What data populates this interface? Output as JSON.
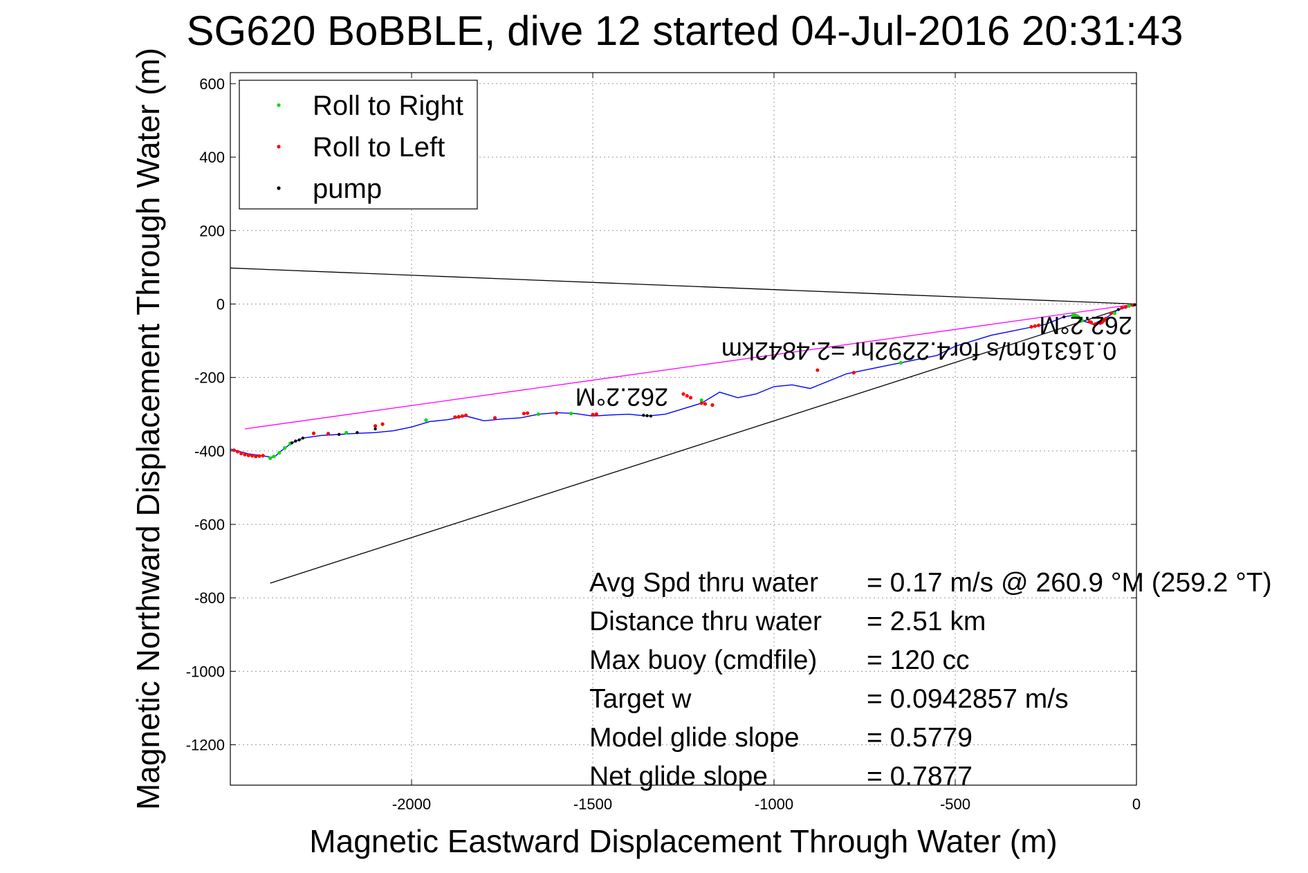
{
  "chart_data": {
    "type": "line",
    "title": "SG620 BoBBLE, dive 12 started 04-Jul-2016 20:31:43",
    "xlabel": "Magnetic Eastward Displacement Through Water (m)",
    "ylabel": "Magnetic Northward Displacement Through Water (m)",
    "xlim": [
      -2500,
      0
    ],
    "ylim": [
      -1310,
      630
    ],
    "xticks": [
      -2000,
      -1500,
      -1000,
      -500,
      0
    ],
    "yticks": [
      600,
      400,
      200,
      0,
      -200,
      -400,
      -600,
      -800,
      -1000,
      -1200
    ],
    "grid": true,
    "legend": {
      "placement": "top-left",
      "entries": [
        {
          "label": "Roll to Right",
          "color": "#00dd00"
        },
        {
          "label": "Roll to Left",
          "color": "#ff0000"
        },
        {
          "label": "pump",
          "color": "#000000"
        }
      ]
    },
    "track": {
      "color": "#0000ff",
      "x": [
        0,
        -50,
        -80,
        -120,
        -150,
        -170,
        -200,
        -250,
        -300,
        -350,
        -400,
        -450,
        -500,
        -550,
        -600,
        -650,
        -700,
        -750,
        -800,
        -850,
        -900,
        -950,
        -1000,
        -1050,
        -1100,
        -1150,
        -1200,
        -1250,
        -1300,
        -1350,
        -1400,
        -1450,
        -1500,
        -1550,
        -1600,
        -1650,
        -1700,
        -1750,
        -1800,
        -1850,
        -1900,
        -1950,
        -2000,
        -2050,
        -2100,
        -2150,
        -2200,
        -2250,
        -2300,
        -2330,
        -2360,
        -2380,
        -2400,
        -2420,
        -2450,
        -2480,
        -2500
      ],
      "y": [
        0,
        -15,
        -35,
        -55,
        -45,
        -30,
        -35,
        -55,
        -65,
        -75,
        -85,
        -100,
        -115,
        -140,
        -150,
        -160,
        -170,
        -180,
        -190,
        -210,
        -230,
        -220,
        -225,
        -245,
        -255,
        -240,
        -270,
        -285,
        -300,
        -305,
        -300,
        -302,
        -305,
        -298,
        -296,
        -300,
        -310,
        -313,
        -318,
        -305,
        -315,
        -320,
        -335,
        -345,
        -350,
        -352,
        -355,
        -358,
        -365,
        -378,
        -400,
        -418,
        -415,
        -412,
        -408,
        -400,
        -395
      ]
    },
    "roll_right": {
      "color": "#00dd00",
      "x": [
        -20,
        -60,
        -150,
        -155,
        -160,
        -165,
        -170,
        -175,
        -650,
        -1200,
        -1560,
        -1650,
        -1960,
        -2080,
        -2180,
        -2335,
        -2350,
        -2365,
        -2380,
        -2390
      ],
      "y": [
        -5,
        -25,
        -45,
        -40,
        -35,
        -32,
        -30,
        -30,
        -160,
        -262,
        -298,
        -300,
        -316,
        -327,
        -350,
        -380,
        -392,
        -405,
        -415,
        -420
      ]
    },
    "roll_left": {
      "color": "#ff0000",
      "x": [
        -10,
        -30,
        -40,
        -70,
        -85,
        -90,
        -95,
        -100,
        -110,
        -115,
        -125,
        -130,
        -270,
        -280,
        -290,
        -780,
        -880,
        -1170,
        -1190,
        -1200,
        -1230,
        -1240,
        -1250,
        -1490,
        -1500,
        -1600,
        -1680,
        -1690,
        -1770,
        -1850,
        -1860,
        -1870,
        -1880,
        -2080,
        -2100,
        -2230,
        -2270,
        -2410,
        -2420,
        -2430,
        -2440,
        -2450,
        -2460,
        -2470,
        -2480,
        -2490
      ],
      "y": [
        -3,
        -8,
        -10,
        -25,
        -40,
        -45,
        -50,
        -52,
        -54,
        -55,
        -50,
        -48,
        -58,
        -60,
        -62,
        -187,
        -180,
        -275,
        -272,
        -270,
        -255,
        -250,
        -245,
        -300,
        -301,
        -297,
        -297,
        -298,
        -310,
        -303,
        -305,
        -307,
        -308,
        -327,
        -332,
        -353,
        -352,
        -413,
        -414,
        -415,
        -413,
        -412,
        -410,
        -407,
        -402,
        -398
      ]
    },
    "pump": {
      "color": "#000000",
      "x": [
        -5,
        -50,
        -200,
        -1340,
        -1350,
        -1360,
        -2100,
        -2150,
        -2200,
        -2300,
        -2310,
        -2320,
        -2330
      ],
      "y": [
        -2,
        -15,
        -35,
        -305,
        -304,
        -303,
        -340,
        -350,
        -355,
        -365,
        -370,
        -373,
        -378
      ]
    },
    "lines": [
      {
        "name": "current",
        "color": "#000000",
        "x": [
          0,
          -2500
        ],
        "y": [
          0,
          98
        ]
      },
      {
        "name": "heading",
        "color": "#000000",
        "x": [
          0,
          -2390
        ],
        "y": [
          0,
          -760
        ]
      },
      {
        "name": "magenta",
        "color": "#ff00ff",
        "x": [
          0,
          -2460
        ],
        "y": [
          0,
          -340
        ]
      }
    ],
    "annotations": [
      {
        "text": "262.2°M",
        "x": -1420,
        "y": -230,
        "rotation": 180
      },
      {
        "text": "262.2°M",
        "x": -140,
        "y": -35,
        "rotation": 180
      },
      {
        "text": "0.16316m/s for4.2292hr =2.4842km",
        "x": -600,
        "y": -105,
        "rotation": 180
      }
    ],
    "stats": [
      {
        "label": "Avg Spd thru water",
        "value": "=  0.17 m/s @ 260.9 °M (259.2 °T)"
      },
      {
        "label": "Distance thru water",
        "value": "=  2.51 km"
      },
      {
        "label": "Max buoy (cmdfile)",
        "value": "= 120 cc"
      },
      {
        "label": "Target w",
        "value": "= 0.0942857 m/s"
      },
      {
        "label": "Model glide slope",
        "value": "= 0.5779"
      },
      {
        "label": "Net glide slope",
        "value": "= 0.7877"
      }
    ]
  }
}
